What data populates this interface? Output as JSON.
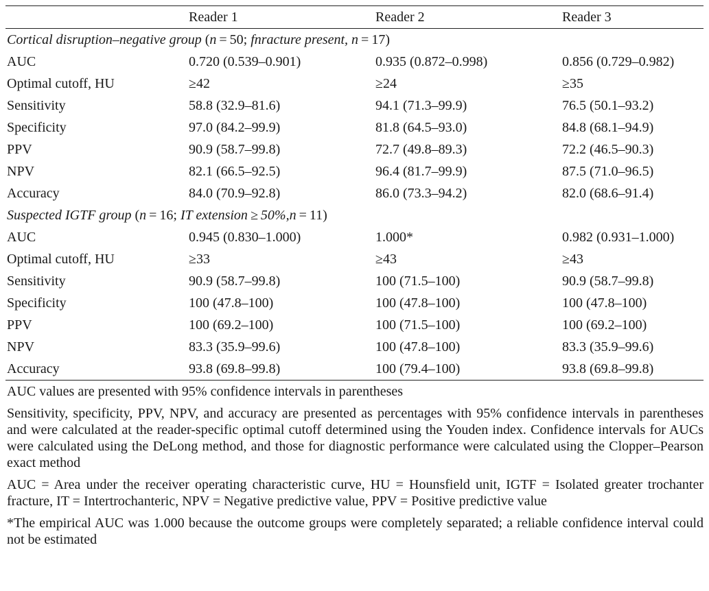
{
  "header": {
    "col0": "",
    "col1": "Reader 1",
    "col2": "Reader 2",
    "col3": "Reader 3"
  },
  "group1": {
    "title_a": "Cortical disruption–negative group",
    "title_b": " (",
    "title_c": "n",
    "title_d": " = 50; ",
    "title_e": "fnracture present, n",
    "title_f": " = 17)",
    "rows": [
      {
        "label": "AUC",
        "r1": "0.720 (0.539–0.901)",
        "r2": "0.935 (0.872–0.998)",
        "r3": "0.856 (0.729–0.982)"
      },
      {
        "label": "Optimal cutoff, HU",
        "r1": "≥42",
        "r2": "≥24",
        "r3": "≥35"
      },
      {
        "label": "Sensitivity",
        "r1": "58.8 (32.9–81.6)",
        "r2": "94.1 (71.3–99.9)",
        "r3": "76.5 (50.1–93.2)"
      },
      {
        "label": "Specificity",
        "r1": "97.0 (84.2–99.9)",
        "r2": "81.8 (64.5–93.0)",
        "r3": "84.8 (68.1–94.9)"
      },
      {
        "label": "PPV",
        "r1": "90.9 (58.7–99.8)",
        "r2": "72.7 (49.8–89.3)",
        "r3": "72.2 (46.5–90.3)"
      },
      {
        "label": "NPV",
        "r1": "82.1 (66.5–92.5)",
        "r2": "96.4 (81.7–99.9)",
        "r3": "87.5 (71.0–96.5)"
      },
      {
        "label": "Accuracy",
        "r1": "84.0 (70.9–92.8)",
        "r2": "86.0 (73.3–94.2)",
        "r3": "82.0 (68.6–91.4)"
      }
    ]
  },
  "group2": {
    "title_a": "Suspected IGTF group",
    "title_b": " (",
    "title_c": "n",
    "title_d": " = 16; ",
    "title_e": "IT extension ≥ 50%,n",
    "title_f": " = 11)",
    "rows": [
      {
        "label": "AUC",
        "r1": "0.945 (0.830–1.000)",
        "r2": "1.000*",
        "r3": "0.982 (0.931–1.000)"
      },
      {
        "label": "Optimal cutoff, HU",
        "r1": "≥33",
        "r2": "≥43",
        "r3": "≥43"
      },
      {
        "label": "Sensitivity",
        "r1": "90.9 (58.7–99.8)",
        "r2": "100 (71.5–100)",
        "r3": "90.9 (58.7–99.8)"
      },
      {
        "label": "Specificity",
        "r1": "100 (47.8–100)",
        "r2": "100 (47.8–100)",
        "r3": "100 (47.8–100)"
      },
      {
        "label": "PPV",
        "r1": "100 (69.2–100)",
        "r2": "100 (71.5–100)",
        "r3": "100 (69.2–100)"
      },
      {
        "label": "NPV",
        "r1": "83.3 (35.9–99.6)",
        "r2": "100 (47.8–100)",
        "r3": "83.3 (35.9–99.6)"
      },
      {
        "label": "Accuracy",
        "r1": "93.8 (69.8–99.8)",
        "r2": "100 (79.4–100)",
        "r3": "93.8 (69.8–99.8)"
      }
    ]
  },
  "notes": [
    "AUC values are presented with 95% confidence intervals in parentheses",
    "Sensitivity, specificity, PPV, NPV, and accuracy are presented as percentages with 95% confidence intervals in parentheses and were calculated at the reader-specific optimal cutoff determined using the Youden index. Confidence intervals for AUCs were calculated using the DeLong method, and those for diagnostic performance were calculated using the Clopper–Pearson exact method",
    "AUC = Area under the receiver operating characteristic curve, HU = Hounsfield unit, IGTF = Isolated greater trochanter fracture, IT = Intertrochanteric, NPV = Negative predictive value, PPV = Positive predictive value",
    "*The empirical AUC was 1.000 because the outcome groups were completely separated; a reliable confidence interval could not be estimated"
  ]
}
